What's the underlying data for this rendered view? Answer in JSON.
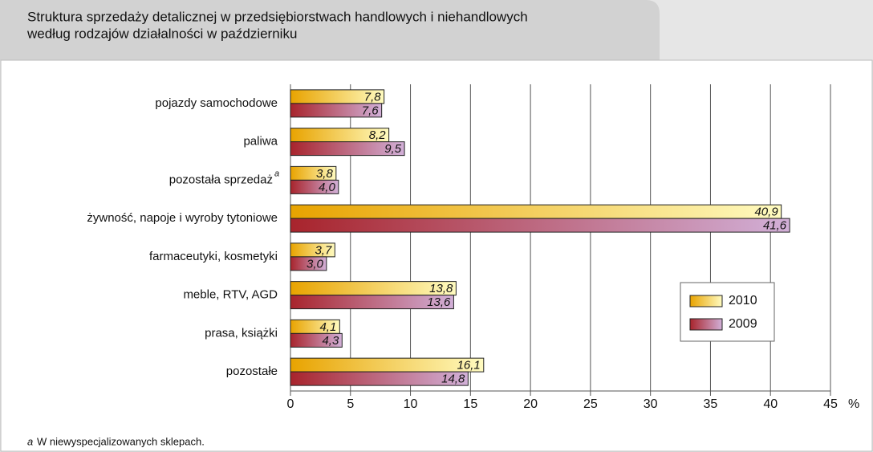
{
  "chart_data": {
    "type": "bar",
    "orientation": "horizontal",
    "title": "Struktura sprzedaży detalicznej w przedsiębiorstwach handlowych i niehandlowych",
    "subtitle": "według rodzajów działalności w październiku",
    "x_unit": "%",
    "categories": [
      "pojazdy samochodowe",
      "paliwa",
      "pozostała sprzedaż",
      "żywność, napoje i wyroby  tytoniowe",
      "farmaceutyki, kosmetyki",
      "meble, RTV, AGD",
      "prasa, książki",
      "pozostałe"
    ],
    "series": [
      {
        "name": "2010",
        "color": "#e8a300",
        "gradient_to": "#fffbc0",
        "values": [
          7.8,
          8.2,
          3.8,
          40.9,
          3.7,
          13.8,
          4.1,
          16.1
        ],
        "value_labels": [
          "7,8",
          "8,2",
          "3,8",
          "40,9",
          "3,7",
          "13,8",
          "4,1",
          "16,1"
        ]
      },
      {
        "name": "2009",
        "color": "#a8242c",
        "gradient_to": "#d2b0d8",
        "values": [
          7.6,
          9.5,
          4.0,
          41.6,
          3.0,
          13.6,
          4.3,
          14.8
        ],
        "value_labels": [
          "7,6",
          "9,5",
          "4,0",
          "41,6",
          "3,0",
          "13,6",
          "4,3",
          "14,8"
        ]
      }
    ],
    "xlim": [
      0,
      45
    ],
    "xticks": [
      0,
      5,
      10,
      15,
      20,
      25,
      30,
      35,
      40,
      45
    ],
    "grid": true,
    "legend": "right",
    "footnote": {
      "marker": "a",
      "text": "W niewyspecjalizowanych sklepach.",
      "category": 2
    }
  }
}
